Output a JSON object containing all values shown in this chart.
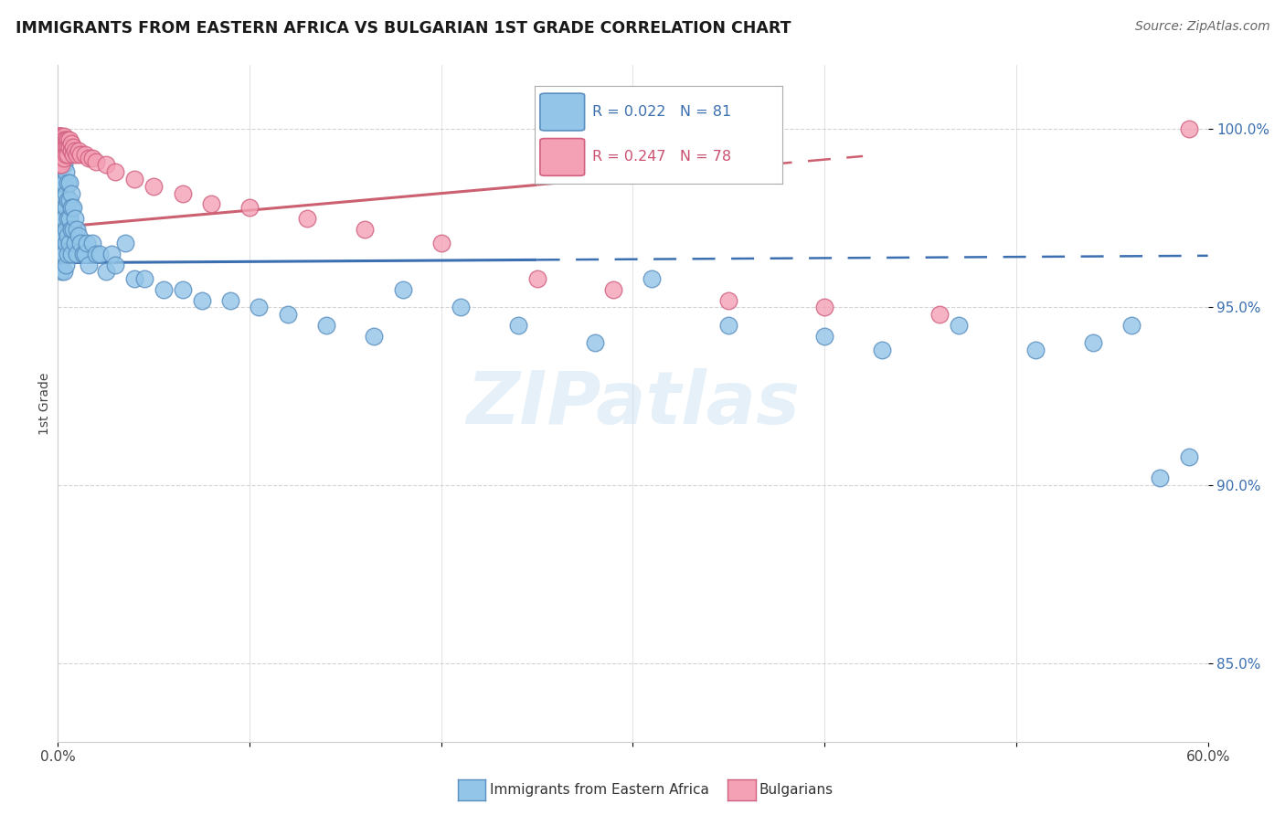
{
  "title": "IMMIGRANTS FROM EASTERN AFRICA VS BULGARIAN 1ST GRADE CORRELATION CHART",
  "source": "Source: ZipAtlas.com",
  "ylabel": "1st Grade",
  "legend_label_blue": "Immigrants from Eastern Africa",
  "legend_label_pink": "Bulgarians",
  "R_blue": 0.022,
  "N_blue": 81,
  "R_pink": 0.247,
  "N_pink": 78,
  "color_blue": "#92C5E8",
  "color_pink": "#F4A0B5",
  "color_blue_edge": "#5A8FC0",
  "color_pink_edge": "#D06080",
  "color_blue_line": "#3B6FB0",
  "color_pink_line": "#CC6070",
  "color_blue_text": "#3B6FB0",
  "color_pink_text": "#CC5070",
  "watermark_text": "ZIPatlas",
  "xmin": 0.0,
  "xmax": 0.6,
  "ymin": 0.828,
  "ymax": 1.018,
  "yticks": [
    0.85,
    0.9,
    0.95,
    1.0
  ],
  "ytick_labels": [
    "85.0%",
    "90.0%",
    "95.0%",
    "100.0%"
  ],
  "trend_split": 0.25,
  "blue_x": [
    0.001,
    0.001,
    0.001,
    0.001,
    0.001,
    0.002,
    0.002,
    0.002,
    0.002,
    0.002,
    0.002,
    0.002,
    0.003,
    0.003,
    0.003,
    0.003,
    0.003,
    0.003,
    0.003,
    0.004,
    0.004,
    0.004,
    0.004,
    0.004,
    0.004,
    0.005,
    0.005,
    0.005,
    0.005,
    0.005,
    0.006,
    0.006,
    0.006,
    0.006,
    0.007,
    0.007,
    0.007,
    0.007,
    0.008,
    0.008,
    0.009,
    0.009,
    0.01,
    0.01,
    0.011,
    0.012,
    0.013,
    0.014,
    0.015,
    0.016,
    0.018,
    0.02,
    0.022,
    0.025,
    0.028,
    0.03,
    0.035,
    0.04,
    0.045,
    0.055,
    0.065,
    0.075,
    0.09,
    0.105,
    0.12,
    0.14,
    0.165,
    0.18,
    0.21,
    0.24,
    0.28,
    0.31,
    0.35,
    0.4,
    0.43,
    0.47,
    0.51,
    0.54,
    0.56,
    0.575,
    0.59
  ],
  "blue_y": [
    0.99,
    0.985,
    0.978,
    0.972,
    0.968,
    0.992,
    0.985,
    0.98,
    0.975,
    0.97,
    0.965,
    0.96,
    0.99,
    0.985,
    0.978,
    0.975,
    0.97,
    0.965,
    0.96,
    0.988,
    0.982,
    0.978,
    0.972,
    0.968,
    0.962,
    0.985,
    0.98,
    0.975,
    0.97,
    0.965,
    0.985,
    0.98,
    0.975,
    0.968,
    0.982,
    0.978,
    0.972,
    0.965,
    0.978,
    0.972,
    0.975,
    0.968,
    0.972,
    0.965,
    0.97,
    0.968,
    0.965,
    0.965,
    0.968,
    0.962,
    0.968,
    0.965,
    0.965,
    0.96,
    0.965,
    0.962,
    0.968,
    0.958,
    0.958,
    0.955,
    0.955,
    0.952,
    0.952,
    0.95,
    0.948,
    0.945,
    0.942,
    0.955,
    0.95,
    0.945,
    0.94,
    0.958,
    0.945,
    0.942,
    0.938,
    0.945,
    0.938,
    0.94,
    0.945,
    0.902,
    0.908
  ],
  "pink_x": [
    0.001,
    0.001,
    0.001,
    0.001,
    0.001,
    0.001,
    0.001,
    0.001,
    0.001,
    0.001,
    0.001,
    0.001,
    0.001,
    0.001,
    0.001,
    0.001,
    0.001,
    0.001,
    0.001,
    0.001,
    0.001,
    0.001,
    0.001,
    0.002,
    0.002,
    0.002,
    0.002,
    0.002,
    0.002,
    0.002,
    0.002,
    0.002,
    0.002,
    0.002,
    0.003,
    0.003,
    0.003,
    0.003,
    0.003,
    0.003,
    0.003,
    0.004,
    0.004,
    0.004,
    0.004,
    0.005,
    0.005,
    0.005,
    0.006,
    0.006,
    0.007,
    0.007,
    0.008,
    0.008,
    0.009,
    0.01,
    0.011,
    0.012,
    0.014,
    0.016,
    0.018,
    0.02,
    0.025,
    0.03,
    0.04,
    0.05,
    0.065,
    0.08,
    0.1,
    0.13,
    0.16,
    0.2,
    0.25,
    0.29,
    0.35,
    0.4,
    0.46,
    0.59
  ],
  "pink_y": [
    0.998,
    0.998,
    0.998,
    0.998,
    0.997,
    0.997,
    0.997,
    0.997,
    0.997,
    0.996,
    0.996,
    0.996,
    0.995,
    0.995,
    0.995,
    0.994,
    0.994,
    0.993,
    0.993,
    0.992,
    0.992,
    0.991,
    0.99,
    0.998,
    0.997,
    0.997,
    0.996,
    0.996,
    0.995,
    0.995,
    0.994,
    0.993,
    0.992,
    0.99,
    0.998,
    0.997,
    0.996,
    0.996,
    0.995,
    0.994,
    0.992,
    0.997,
    0.996,
    0.995,
    0.993,
    0.997,
    0.995,
    0.993,
    0.997,
    0.995,
    0.996,
    0.994,
    0.995,
    0.993,
    0.994,
    0.993,
    0.994,
    0.993,
    0.993,
    0.992,
    0.992,
    0.991,
    0.99,
    0.988,
    0.986,
    0.984,
    0.982,
    0.979,
    0.978,
    0.975,
    0.972,
    0.968,
    0.958,
    0.955,
    0.952,
    0.95,
    0.948,
    1.0
  ]
}
